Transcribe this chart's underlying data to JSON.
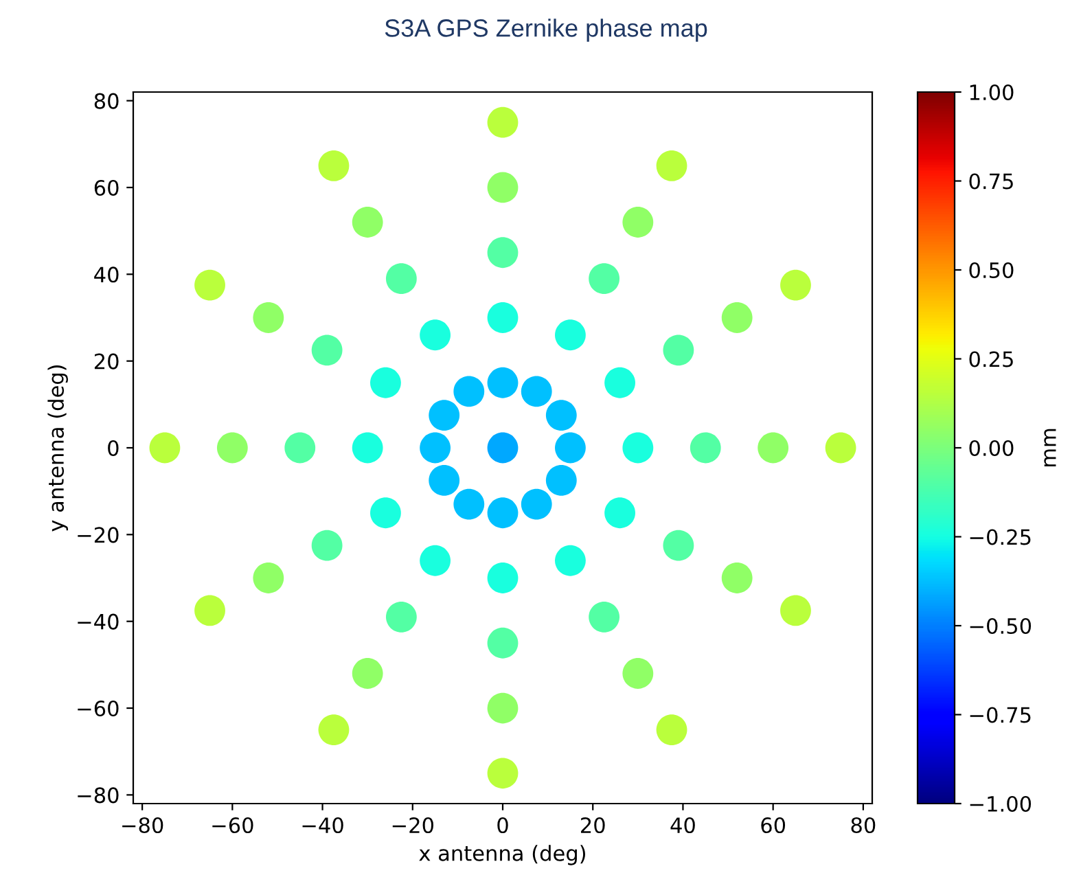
{
  "chart_data": {
    "type": "scatter",
    "title": "S3A GPS Zernike phase map",
    "xlabel": "x antenna (deg)",
    "ylabel": "y antenna (deg)",
    "clabel": "mm",
    "series": [
      {
        "x": [
          0
        ],
        "values": [
          0
        ],
        "cvalues": [
          -0.42
        ]
      },
      {
        "x": [
          15,
          13,
          7.5,
          0,
          -7.5,
          -13,
          -15,
          -13,
          -7.5,
          0,
          7.5,
          13
        ],
        "values": [
          0,
          7.5,
          13,
          15,
          13,
          7.5,
          0,
          -7.5,
          -13,
          -15,
          -13,
          -7.5
        ],
        "cvalues": [
          -0.37,
          -0.37,
          -0.37,
          -0.37,
          -0.37,
          -0.37,
          -0.37,
          -0.37,
          -0.37,
          -0.37,
          -0.37,
          -0.37
        ]
      },
      {
        "x": [
          30,
          26,
          15,
          0,
          -15,
          -26,
          -30,
          -26,
          -15,
          0,
          15,
          26
        ],
        "values": [
          0,
          15,
          26,
          30,
          26,
          15,
          0,
          -15,
          -26,
          -30,
          -26,
          -15
        ],
        "cvalues": [
          -0.24,
          -0.24,
          -0.24,
          -0.24,
          -0.24,
          -0.24,
          -0.24,
          -0.24,
          -0.24,
          -0.24,
          -0.24,
          -0.24
        ]
      },
      {
        "x": [
          45,
          39,
          22.5,
          0,
          -22.5,
          -39,
          -45,
          -39,
          -22.5,
          0,
          22.5,
          39
        ],
        "values": [
          0,
          22.5,
          39,
          45,
          39,
          22.5,
          0,
          -22.5,
          -39,
          -45,
          -39,
          -22.5
        ],
        "cvalues": [
          -0.1,
          -0.1,
          -0.1,
          -0.1,
          -0.1,
          -0.1,
          -0.1,
          -0.1,
          -0.1,
          -0.1,
          -0.1,
          -0.1
        ]
      },
      {
        "x": [
          60,
          52,
          30,
          0,
          -30,
          -52,
          -60,
          -52,
          -30,
          0,
          30,
          52
        ],
        "values": [
          0,
          30,
          52,
          60,
          52,
          30,
          0,
          -30,
          -52,
          -60,
          -52,
          -30
        ],
        "cvalues": [
          0.05,
          0.05,
          0.05,
          0.05,
          0.05,
          0.05,
          0.05,
          0.05,
          0.05,
          0.05,
          0.05,
          0.05
        ]
      },
      {
        "x": [
          75,
          65,
          37.5,
          0,
          -37.5,
          -65,
          -75,
          -65,
          -37.5,
          0,
          37.5,
          65
        ],
        "values": [
          0,
          37.5,
          65,
          75,
          65,
          37.5,
          0,
          -37.5,
          -65,
          -75,
          -65,
          -37.5
        ],
        "cvalues": [
          0.15,
          0.15,
          0.15,
          0.15,
          0.15,
          0.15,
          0.15,
          0.15,
          0.15,
          0.15,
          0.15,
          0.15
        ]
      }
    ],
    "xlim": [
      -82,
      82
    ],
    "ylim": [
      -82,
      82
    ],
    "xticks": [
      -80,
      -60,
      -40,
      -20,
      0,
      20,
      40,
      60,
      80
    ],
    "yticks": [
      -80,
      -60,
      -40,
      -20,
      0,
      20,
      40,
      60,
      80
    ],
    "clim": [
      -1,
      1
    ],
    "cticks": [
      {
        "value": -1,
        "label": "−1.00"
      },
      {
        "value": -0.75,
        "label": "−0.75"
      },
      {
        "value": -0.5,
        "label": "−0.50"
      },
      {
        "value": -0.25,
        "label": "−0.25"
      },
      {
        "value": 0,
        "label": "0.00"
      },
      {
        "value": 0.25,
        "label": "0.25"
      },
      {
        "value": 0.5,
        "label": "0.50"
      },
      {
        "value": 0.75,
        "label": "0.75"
      },
      {
        "value": 1,
        "label": "1.00"
      }
    ],
    "marker": "circle",
    "grid": false
  }
}
